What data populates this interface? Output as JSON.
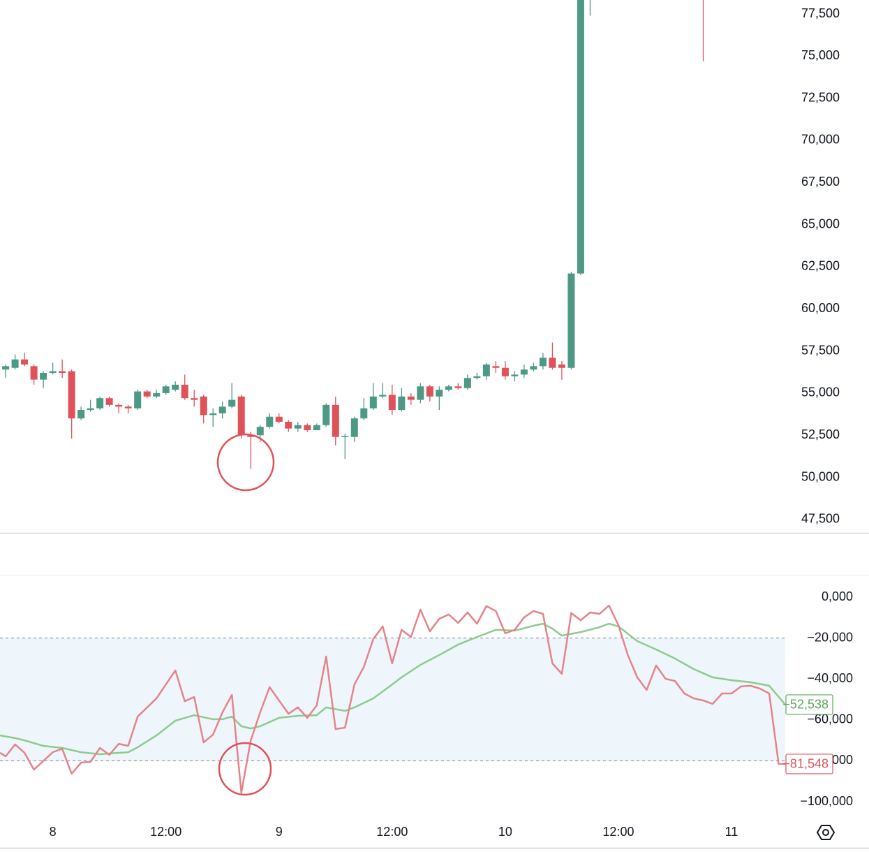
{
  "chart_data": [
    {
      "type": "candlestick",
      "x": [
        -5,
        -4,
        -3,
        -2,
        -1,
        0,
        1,
        2,
        3,
        4,
        5,
        6,
        7,
        8,
        9,
        10,
        11,
        12,
        13,
        14,
        15,
        16,
        17,
        18,
        19,
        20,
        21,
        22,
        23,
        24,
        25,
        26,
        27,
        28,
        29,
        30,
        31,
        32,
        33,
        34,
        35,
        36,
        37,
        38,
        39,
        40,
        41,
        42,
        43,
        44,
        45,
        46,
        47,
        48,
        49,
        50,
        51,
        52,
        53,
        54,
        55,
        56,
        57,
        69
      ],
      "open": [
        56400,
        56500,
        57000,
        56600,
        55800,
        56200,
        56300,
        56300,
        53500,
        54000,
        54100,
        54700,
        54300,
        54200,
        54100,
        55100,
        54800,
        55000,
        55200,
        55500,
        54700,
        54800,
        53700,
        53800,
        54200,
        54800,
        52500,
        52500,
        53000,
        53600,
        53300,
        52900,
        53100,
        52800,
        53100,
        54300,
        52400,
        52400,
        53500,
        54100,
        54800,
        54900,
        54000,
        54800,
        54600,
        55400,
        54800,
        55200,
        55400,
        55300,
        55900,
        56000,
        56600,
        56500,
        56000,
        56100,
        56400,
        56600,
        57100,
        56700,
        56500,
        62100,
        80000,
        81000
      ],
      "high": [
        56700,
        57300,
        57400,
        56700,
        56300,
        56800,
        57000,
        56400,
        54200,
        54600,
        54800,
        54800,
        54400,
        54300,
        55200,
        55200,
        55200,
        55500,
        55700,
        56100,
        55200,
        54900,
        54100,
        54500,
        55600,
        54900,
        52700,
        53100,
        53800,
        53800,
        53400,
        53300,
        53200,
        53200,
        54400,
        54800,
        52600,
        53600,
        54700,
        55600,
        55600,
        55500,
        55300,
        55000,
        55600,
        55500,
        55400,
        55500,
        55600,
        56100,
        56200,
        56800,
        56900,
        56900,
        56300,
        56700,
        56800,
        57400,
        58000,
        56900,
        62200,
        80000,
        81000,
        81500
      ],
      "low": [
        55900,
        56400,
        56600,
        55500,
        55300,
        56100,
        55900,
        52300,
        53400,
        53900,
        54000,
        54200,
        53800,
        53800,
        54000,
        54700,
        54700,
        54900,
        55100,
        54600,
        54200,
        53200,
        53000,
        53500,
        54100,
        52300,
        50500,
        52100,
        52900,
        53200,
        52700,
        52700,
        52700,
        52800,
        53000,
        51900,
        51100,
        52100,
        53400,
        54000,
        54700,
        53700,
        53900,
        54300,
        54400,
        54500,
        54000,
        55100,
        55200,
        55200,
        55800,
        55800,
        56200,
        55800,
        55700,
        55900,
        56300,
        56400,
        56400,
        55800,
        56400,
        62000,
        77400,
        74700
      ],
      "close": [
        56600,
        57000,
        56700,
        55800,
        56200,
        56300,
        56200,
        53500,
        54000,
        54100,
        54700,
        54300,
        54200,
        54100,
        55100,
        54800,
        55000,
        55400,
        55500,
        54700,
        54600,
        53700,
        53800,
        54200,
        54600,
        52500,
        52400,
        53000,
        53600,
        53300,
        52900,
        53100,
        52800,
        53100,
        54300,
        52400,
        52450,
        53500,
        54100,
        54800,
        54900,
        54000,
        54800,
        54600,
        55400,
        54800,
        55200,
        55400,
        55300,
        55900,
        56000,
        56700,
        56500,
        56000,
        56100,
        56400,
        56600,
        57100,
        56500,
        56500,
        62100,
        80000,
        80500,
        80000
      ],
      "up_color": "#4c9a85",
      "down_color": "#e0525a",
      "xlim": [
        -5.6,
        77.7
      ],
      "ylim": [
        46750,
        78330
      ],
      "yticks": [
        {
          "value": 47500,
          "label": "47,500"
        },
        {
          "value": 50000,
          "label": "50,000"
        },
        {
          "value": 52500,
          "label": "52,500"
        },
        {
          "value": 55000,
          "label": "55,000"
        },
        {
          "value": 57500,
          "label": "57,500"
        },
        {
          "value": 60000,
          "label": "60,000"
        },
        {
          "value": 62500,
          "label": "62,500"
        },
        {
          "value": 65000,
          "label": "65,000"
        },
        {
          "value": 67500,
          "label": "67,500"
        },
        {
          "value": 70000,
          "label": "70,000"
        },
        {
          "value": 72500,
          "label": "72,500"
        },
        {
          "value": 75000,
          "label": "75,000"
        },
        {
          "value": 77500,
          "label": "77,500"
        }
      ]
    },
    {
      "type": "line",
      "xlim": [
        -5.6,
        77.7
      ],
      "ylim": [
        -107500,
        10240
      ],
      "yticks": [
        {
          "value": -100000,
          "label": "−100,000"
        },
        {
          "value": -80000,
          "label": "−80,000"
        },
        {
          "value": -60000,
          "label": "−60,000"
        },
        {
          "value": -40000,
          "label": "−40,000"
        },
        {
          "value": -20000,
          "label": "−20,000"
        },
        {
          "value": 0,
          "label": "0,000"
        }
      ],
      "xticks": [
        {
          "value": 0,
          "label": "8"
        },
        {
          "value": 12,
          "label": "12:00"
        },
        {
          "value": 24,
          "label": "9"
        },
        {
          "value": 36,
          "label": "12:00"
        },
        {
          "value": 48,
          "label": "10"
        },
        {
          "value": 60,
          "label": "12:00"
        },
        {
          "value": 72,
          "label": "11"
        }
      ],
      "band": {
        "upper": -20000,
        "lower": -80000,
        "color": "#eef5fb"
      },
      "series": [
        {
          "color": "#8ccb8e",
          "badge_color": "#5fa55f",
          "last_label": "−52,538",
          "x": [
            -5.6,
            -4,
            -3,
            -1,
            1,
            3,
            5,
            7,
            8,
            9,
            11,
            13,
            15,
            17,
            18,
            19,
            20,
            21,
            22,
            24,
            26,
            28,
            29,
            31,
            32,
            34,
            36,
            37,
            39,
            41,
            43,
            45,
            47,
            49,
            51,
            52,
            53,
            54,
            56,
            58,
            59,
            60,
            62,
            64,
            66,
            68,
            70,
            72,
            74,
            76,
            77.7
          ],
          "values": [
            -67600,
            -68900,
            -70000,
            -72700,
            -73700,
            -75800,
            -76800,
            -76100,
            -75800,
            -73400,
            -67600,
            -60400,
            -57700,
            -59700,
            -59700,
            -58400,
            -63100,
            -64200,
            -63100,
            -59000,
            -58000,
            -57700,
            -53900,
            -55600,
            -53900,
            -49500,
            -42700,
            -39200,
            -33100,
            -28300,
            -23200,
            -19500,
            -16000,
            -16400,
            -14000,
            -13000,
            -15400,
            -18800,
            -17100,
            -14700,
            -13000,
            -14300,
            -21500,
            -25600,
            -30000,
            -35200,
            -39200,
            -40600,
            -41600,
            -43300,
            -52538
          ]
        },
        {
          "color": "#e5838a",
          "badge_color": "#e0525a",
          "last_label": "−81,548",
          "x": [
            -5.6,
            -5,
            -4,
            -3,
            -2,
            0,
            1,
            2,
            3,
            4,
            5,
            6,
            7,
            8,
            9,
            11,
            13,
            14,
            15,
            16,
            17,
            18,
            19,
            20,
            21,
            22,
            23,
            25,
            26,
            27,
            28,
            29,
            30,
            31,
            32,
            33,
            34,
            35,
            36,
            37,
            38,
            39,
            40,
            41,
            42,
            43,
            44,
            45,
            46,
            47,
            48,
            49,
            50,
            51,
            52,
            53,
            54,
            55,
            56,
            57,
            58,
            59,
            60,
            61,
            62,
            63,
            64,
            65,
            66,
            67,
            68,
            69,
            70,
            71,
            72,
            73,
            74,
            75,
            76,
            77,
            77.7
          ],
          "values": [
            -76100,
            -77800,
            -72000,
            -76100,
            -84300,
            -75800,
            -74100,
            -86300,
            -80900,
            -80500,
            -73700,
            -77100,
            -71700,
            -72700,
            -58400,
            -49500,
            -35800,
            -50900,
            -48800,
            -71000,
            -67200,
            -56300,
            -47800,
            -95600,
            -70000,
            -56300,
            -44000,
            -57000,
            -53900,
            -59000,
            -52900,
            -29000,
            -64500,
            -63800,
            -42700,
            -34100,
            -20500,
            -14300,
            -32400,
            -16000,
            -19500,
            -6100,
            -16700,
            -10600,
            -8500,
            -12600,
            -7500,
            -13000,
            -4400,
            -6800,
            -17700,
            -16000,
            -9900,
            -6800,
            -8200,
            -32400,
            -37500,
            -7800,
            -11300,
            -7500,
            -8200,
            -4100,
            -13700,
            -28300,
            -39200,
            -45400,
            -33400,
            -39900,
            -41000,
            -47100,
            -49500,
            -50500,
            -52200,
            -47100,
            -47100,
            -43700,
            -43300,
            -44700,
            -47100,
            -81500,
            -81548
          ]
        }
      ]
    }
  ]
}
